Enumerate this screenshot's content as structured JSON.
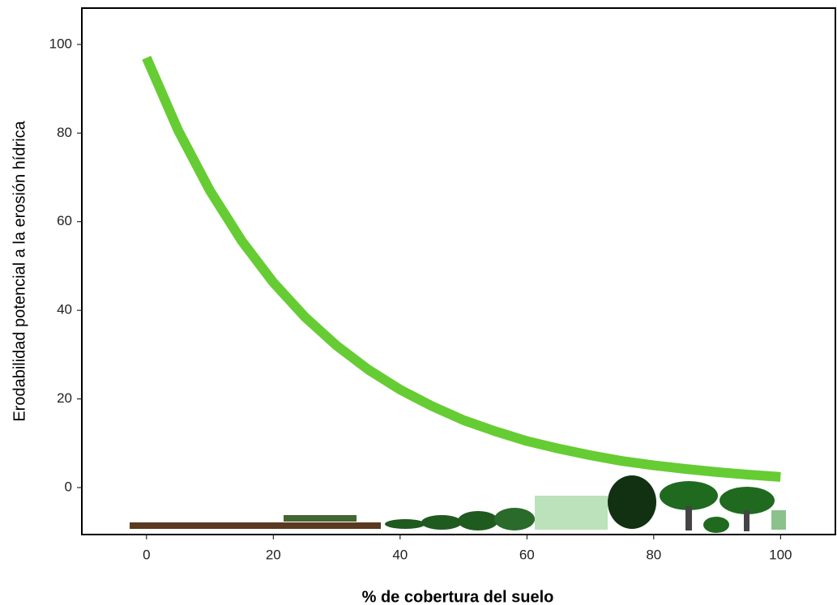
{
  "chart_data": {
    "type": "line",
    "x_label": "% de cobertura del suelo",
    "y_label": "Erodabilidad potencial a la erosión hídrica",
    "x": [
      0,
      5,
      10,
      15,
      20,
      25,
      30,
      35,
      40,
      45,
      50,
      55,
      60,
      65,
      70,
      75,
      80,
      85,
      90,
      95,
      100
    ],
    "series": [
      {
        "color": "#66cc33",
        "values": [
          97,
          80.6,
          67.0,
          55.7,
          46.3,
          38.5,
          32.0,
          26.6,
          22.1,
          18.4,
          15.2,
          12.7,
          10.5,
          8.8,
          7.3,
          6.0,
          5.0,
          4.2,
          3.5,
          2.9,
          2.4
        ]
      }
    ],
    "xlim": [
      -10.2,
      107.5
    ],
    "ylim": [
      -10.6,
      108.2
    ],
    "xticks": [
      0,
      20,
      40,
      60,
      80,
      100
    ],
    "yticks": [
      0,
      20,
      40,
      60,
      80,
      100
    ],
    "grid": false
  }
}
